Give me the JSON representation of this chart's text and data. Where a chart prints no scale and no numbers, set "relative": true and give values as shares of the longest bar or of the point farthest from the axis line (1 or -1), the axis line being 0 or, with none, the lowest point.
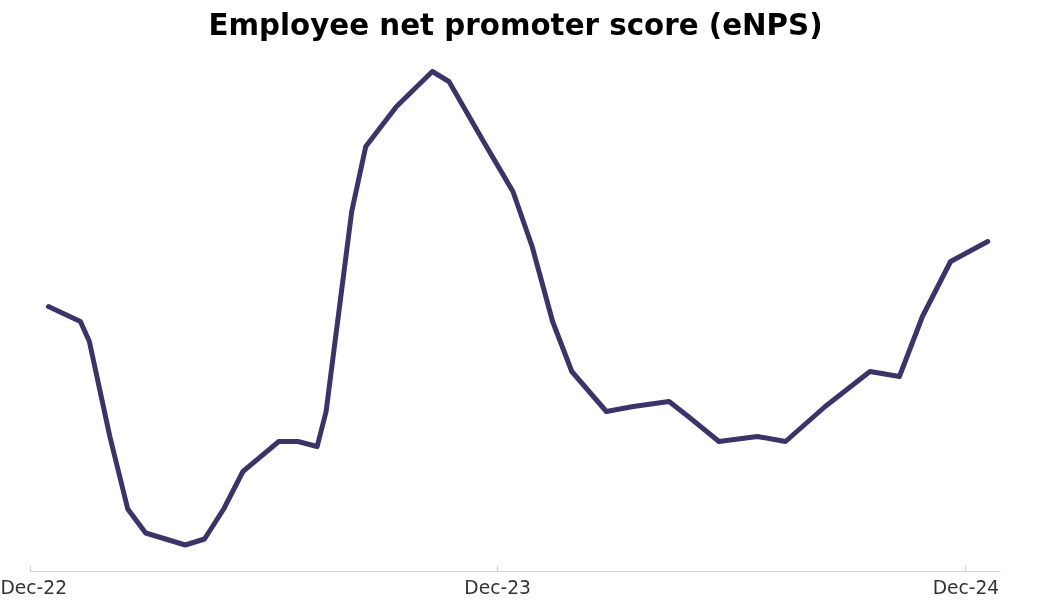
{
  "chart_data": {
    "type": "line",
    "title": "Employee net promoter score (eNPS)",
    "relative": true,
    "grid": false,
    "marker": "none",
    "line_style": "solid",
    "xlim": [
      "2022-12-01",
      "2024-12-28"
    ],
    "xticks": [
      {
        "value": "2022-12-01",
        "label": "Dec-22"
      },
      {
        "value": "2023-12-01",
        "label": "Dec-23"
      },
      {
        "value": "2024-12-01",
        "label": "Dec-24"
      }
    ],
    "series": [
      {
        "color": "#3b3468",
        "x": [
          "2022-12-15",
          "2023-01-09",
          "2023-01-16",
          "2023-02-01",
          "2023-02-15",
          "2023-03-01",
          "2023-04-01",
          "2023-04-16",
          "2023-05-01",
          "2023-05-16",
          "2023-06-13",
          "2023-06-28",
          "2023-07-13",
          "2023-07-20",
          "2023-08-09",
          "2023-08-20",
          "2023-09-13",
          "2023-10-11",
          "2023-10-24",
          "2023-11-20",
          "2023-12-13",
          "2023-12-28",
          "2024-01-13",
          "2024-01-28",
          "2024-02-24",
          "2024-03-16",
          "2024-04-13",
          "2024-04-28",
          "2024-05-22",
          "2024-06-21",
          "2024-07-13",
          "2024-08-13",
          "2024-09-17",
          "2024-10-10",
          "2024-10-28",
          "2024-11-19",
          "2024-12-18"
        ],
        "values": [
          0.53,
          0.5,
          0.46,
          0.27,
          0.125,
          0.077,
          0.053,
          0.065,
          0.125,
          0.2,
          0.26,
          0.26,
          0.25,
          0.32,
          0.72,
          0.85,
          0.93,
          1,
          0.98,
          0.86,
          0.76,
          0.65,
          0.5,
          0.4,
          0.32,
          0.33,
          0.34,
          0.31,
          0.26,
          0.27,
          0.26,
          0.33,
          0.4,
          0.39,
          0.51,
          0.62,
          0.66
        ]
      }
    ]
  }
}
